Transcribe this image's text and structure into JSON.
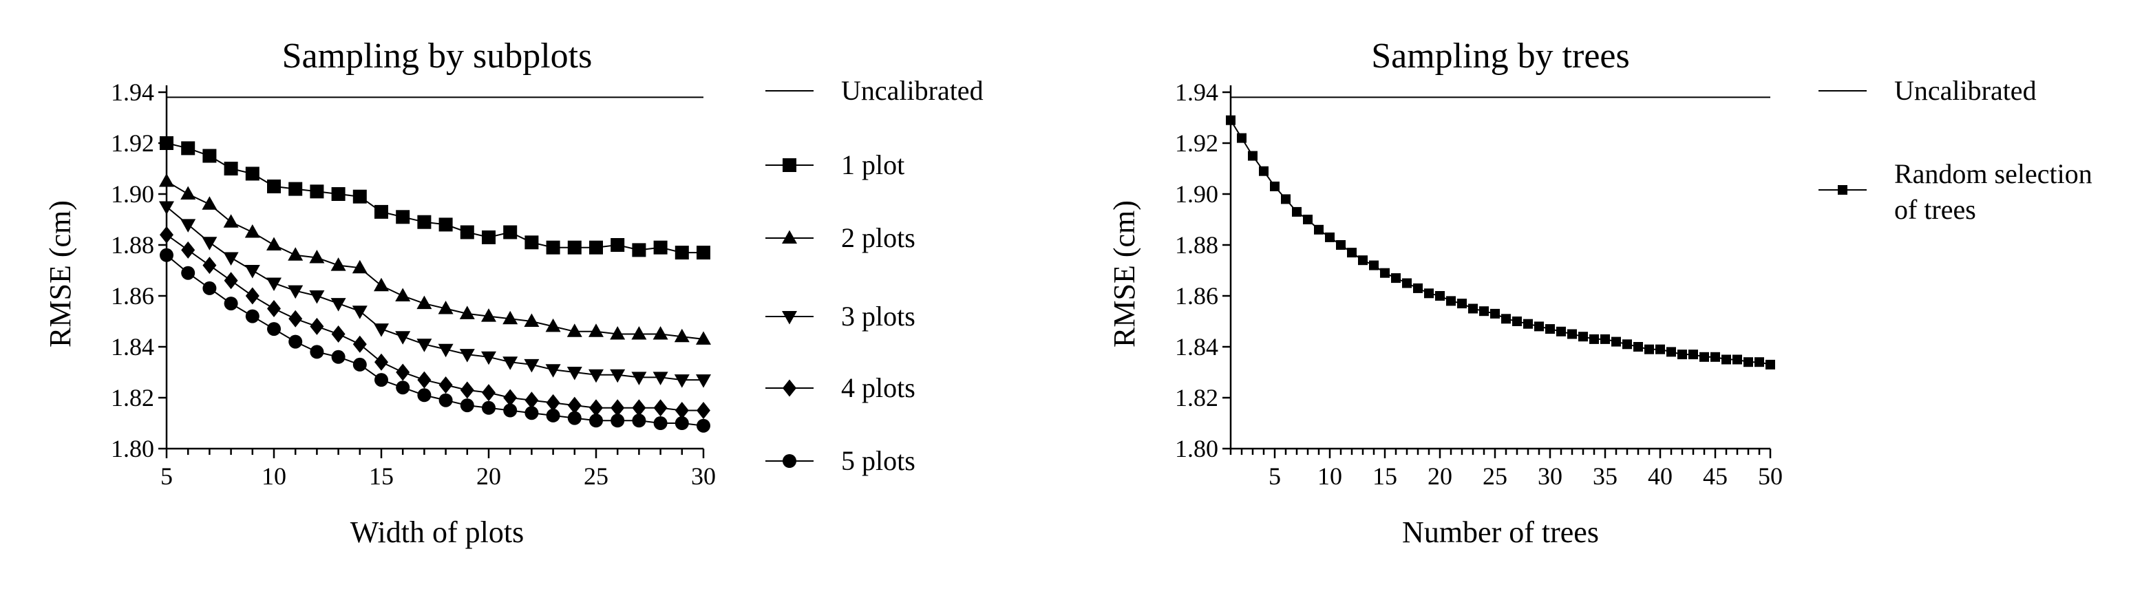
{
  "chart_data": [
    {
      "type": "line",
      "title": "Sampling by subplots",
      "xlabel": "Width of plots",
      "ylabel": "RMSE (cm)",
      "xlim": [
        5,
        30
      ],
      "ylim": [
        1.8,
        1.94
      ],
      "xticks": [
        "5",
        "10",
        "15",
        "20",
        "25",
        "30"
      ],
      "yticks": [
        "1.80",
        "1.82",
        "1.84",
        "1.86",
        "1.88",
        "1.90",
        "1.92",
        "1.94"
      ],
      "legend_position": "right",
      "uncalibrated": {
        "name": "Uncalibrated",
        "value": 1.938
      },
      "x": [
        5,
        6,
        7,
        8,
        9,
        10,
        11,
        12,
        13,
        14,
        15,
        16,
        17,
        18,
        19,
        20,
        21,
        22,
        23,
        24,
        25,
        26,
        27,
        28,
        29,
        30
      ],
      "series": [
        {
          "name": "1 plot",
          "marker": "square",
          "values": [
            1.92,
            1.918,
            1.915,
            1.91,
            1.908,
            1.903,
            1.902,
            1.901,
            1.9,
            1.899,
            1.893,
            1.891,
            1.889,
            1.888,
            1.885,
            1.883,
            1.885,
            1.881,
            1.879,
            1.879,
            1.879,
            1.88,
            1.878,
            1.879,
            1.877,
            1.877
          ]
        },
        {
          "name": "2 plots",
          "marker": "triangle-up",
          "values": [
            1.905,
            1.9,
            1.896,
            1.889,
            1.885,
            1.88,
            1.876,
            1.875,
            1.872,
            1.871,
            1.864,
            1.86,
            1.857,
            1.855,
            1.853,
            1.852,
            1.851,
            1.85,
            1.848,
            1.846,
            1.846,
            1.845,
            1.845,
            1.845,
            1.844,
            1.843
          ]
        },
        {
          "name": "3 plots",
          "marker": "triangle-down",
          "values": [
            1.895,
            1.888,
            1.881,
            1.875,
            1.87,
            1.865,
            1.862,
            1.86,
            1.857,
            1.854,
            1.847,
            1.844,
            1.841,
            1.839,
            1.837,
            1.836,
            1.834,
            1.833,
            1.831,
            1.83,
            1.829,
            1.829,
            1.828,
            1.828,
            1.827,
            1.827
          ]
        },
        {
          "name": "4 plots",
          "marker": "diamond",
          "values": [
            1.884,
            1.878,
            1.872,
            1.866,
            1.86,
            1.855,
            1.851,
            1.848,
            1.845,
            1.841,
            1.834,
            1.83,
            1.827,
            1.825,
            1.823,
            1.822,
            1.82,
            1.819,
            1.818,
            1.817,
            1.816,
            1.816,
            1.816,
            1.816,
            1.815,
            1.815
          ]
        },
        {
          "name": "5 plots",
          "marker": "circle",
          "values": [
            1.876,
            1.869,
            1.863,
            1.857,
            1.852,
            1.847,
            1.842,
            1.838,
            1.836,
            1.833,
            1.827,
            1.824,
            1.821,
            1.819,
            1.817,
            1.816,
            1.815,
            1.814,
            1.813,
            1.812,
            1.811,
            1.811,
            1.811,
            1.81,
            1.81,
            1.809
          ]
        }
      ]
    },
    {
      "type": "line",
      "title": "Sampling by trees",
      "xlabel": "Number of trees",
      "ylabel": "RMSE (cm)",
      "xlim": [
        1,
        50
      ],
      "ylim": [
        1.8,
        1.94
      ],
      "xticks": [
        "5",
        "10",
        "15",
        "20",
        "25",
        "30",
        "35",
        "40",
        "45",
        "50"
      ],
      "yticks": [
        "1.80",
        "1.82",
        "1.84",
        "1.86",
        "1.88",
        "1.90",
        "1.92",
        "1.94"
      ],
      "legend_position": "right",
      "uncalibrated": {
        "name": "Uncalibrated",
        "value": 1.938
      },
      "x": [
        1,
        2,
        3,
        4,
        5,
        6,
        7,
        8,
        9,
        10,
        11,
        12,
        13,
        14,
        15,
        16,
        17,
        18,
        19,
        20,
        21,
        22,
        23,
        24,
        25,
        26,
        27,
        28,
        29,
        30,
        31,
        32,
        33,
        34,
        35,
        36,
        37,
        38,
        39,
        40,
        41,
        42,
        43,
        44,
        45,
        46,
        47,
        48,
        49,
        50
      ],
      "series": [
        {
          "name": "Random selection of trees",
          "legend_lines": [
            "Random selection",
            "of trees"
          ],
          "marker": "square",
          "values": [
            1.929,
            1.922,
            1.915,
            1.909,
            1.903,
            1.898,
            1.893,
            1.89,
            1.886,
            1.883,
            1.88,
            1.877,
            1.874,
            1.872,
            1.869,
            1.867,
            1.865,
            1.863,
            1.861,
            1.86,
            1.858,
            1.857,
            1.855,
            1.854,
            1.853,
            1.851,
            1.85,
            1.849,
            1.848,
            1.847,
            1.846,
            1.845,
            1.844,
            1.843,
            1.843,
            1.842,
            1.841,
            1.84,
            1.839,
            1.839,
            1.838,
            1.837,
            1.837,
            1.836,
            1.836,
            1.835,
            1.835,
            1.834,
            1.834,
            1.833
          ]
        }
      ]
    }
  ]
}
